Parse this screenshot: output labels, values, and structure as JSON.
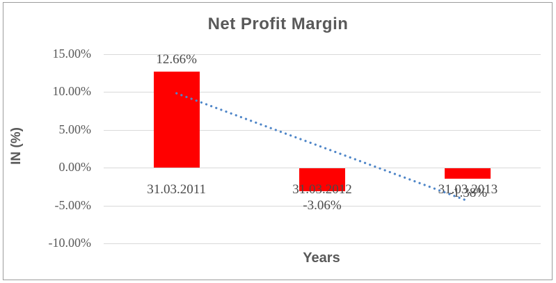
{
  "chart_data": {
    "type": "bar",
    "title": "Net Profit Margin",
    "xlabel": "Years",
    "ylabel": "IN (%)",
    "categories": [
      "31.03.2011",
      "31.03.2012",
      "31.03.2013"
    ],
    "values": [
      12.66,
      -3.06,
      -1.38
    ],
    "data_labels": [
      "12.66%",
      "-3.06%",
      "-1.38%"
    ],
    "yticks": [
      {
        "value": 15,
        "label": "15.00%"
      },
      {
        "value": 10,
        "label": "10.00%"
      },
      {
        "value": 5,
        "label": "5.00%"
      },
      {
        "value": 0,
        "label": "0.00%"
      },
      {
        "value": -5,
        "label": "-5.00%"
      },
      {
        "value": -10,
        "label": "-10.00%"
      }
    ],
    "ylim": [
      -10,
      15
    ],
    "grid": true,
    "legend": "none",
    "trendline": {
      "style": "dotted",
      "start_pct": 9.8,
      "end_pct": -4.4
    },
    "colors": {
      "bar": "#ff0000",
      "gridline": "#d9d9d9",
      "title_text": "#595959",
      "axis_text": "#595959",
      "label_text": "#4a4a4a",
      "trendline": "#4f86c8",
      "border": "#9b9b9b"
    }
  }
}
